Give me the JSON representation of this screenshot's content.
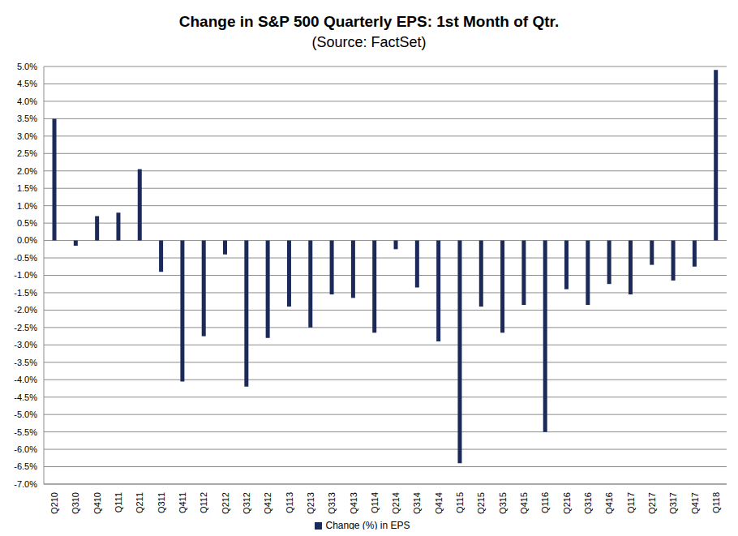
{
  "chart_data": {
    "type": "bar",
    "title": "Change in S&P 500 Quarterly EPS: 1st Month of Qtr.",
    "subtitle": "(Source: FactSet)",
    "categories": [
      "Q210",
      "Q310",
      "Q410",
      "Q111",
      "Q211",
      "Q311",
      "Q411",
      "Q112",
      "Q212",
      "Q312",
      "Q412",
      "Q113",
      "Q213",
      "Q313",
      "Q413",
      "Q114",
      "Q214",
      "Q314",
      "Q414",
      "Q115",
      "Q215",
      "Q315",
      "Q415",
      "Q116",
      "Q216",
      "Q316",
      "Q416",
      "Q117",
      "Q217",
      "Q317",
      "Q417",
      "Q118"
    ],
    "series": [
      {
        "name": "Change (%) in EPS",
        "color": "#1c2a5a",
        "values": [
          3.5,
          -0.15,
          0.7,
          0.8,
          2.05,
          -0.9,
          -4.05,
          -2.75,
          -0.4,
          -4.2,
          -2.8,
          -1.9,
          -2.5,
          -1.55,
          -1.65,
          -2.65,
          -0.25,
          -1.35,
          -2.9,
          -6.4,
          -1.9,
          -2.65,
          -1.85,
          -5.5,
          -1.4,
          -1.85,
          -1.25,
          -1.55,
          -0.7,
          -1.15,
          -0.75,
          4.9
        ]
      }
    ],
    "ylim": [
      -7,
      5
    ],
    "yticks": [
      {
        "value": -7,
        "label": "-7.0%"
      },
      {
        "value": -6.5,
        "label": "-6.5%"
      },
      {
        "value": -6,
        "label": "-6.0%"
      },
      {
        "value": -5.5,
        "label": "-5.5%"
      },
      {
        "value": -5,
        "label": "-5.0%"
      },
      {
        "value": -4.5,
        "label": "-4.5%"
      },
      {
        "value": -4,
        "label": "-4.0%"
      },
      {
        "value": -3.5,
        "label": "-3.5%"
      },
      {
        "value": -3,
        "label": "-3.0%"
      },
      {
        "value": -2.5,
        "label": "-2.5%"
      },
      {
        "value": -2,
        "label": "-2.0%"
      },
      {
        "value": -1.5,
        "label": "-1.5%"
      },
      {
        "value": -1,
        "label": "-1.0%"
      },
      {
        "value": -0.5,
        "label": "-0.5%"
      },
      {
        "value": 0,
        "label": "0.0%"
      },
      {
        "value": 0.5,
        "label": "0.5%"
      },
      {
        "value": 1,
        "label": "1.0%"
      },
      {
        "value": 1.5,
        "label": "1.5%"
      },
      {
        "value": 2,
        "label": "2.0%"
      },
      {
        "value": 2.5,
        "label": "2.5%"
      },
      {
        "value": 3,
        "label": "3.0%"
      },
      {
        "value": 3.5,
        "label": "3.5%"
      },
      {
        "value": 4,
        "label": "4.0%"
      },
      {
        "value": 4.5,
        "label": "4.5%"
      },
      {
        "value": 5,
        "label": "5.0%"
      }
    ],
    "grid": true,
    "legend": "bottom"
  }
}
